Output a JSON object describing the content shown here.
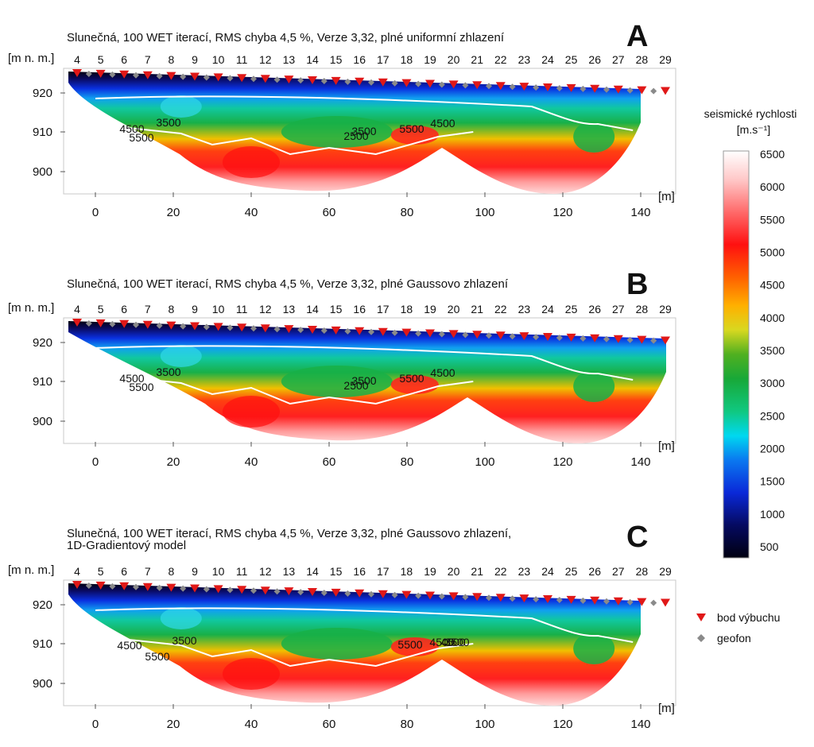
{
  "panels": [
    {
      "letter": "A",
      "title": "Slunečná, 100 WET iterací, RMS chyba 4,5 %, Verze 3,32, plné uniformní zhlazení",
      "title2": "",
      "contours": [
        "4500",
        "3500",
        "5500",
        "2500",
        "3500",
        "5500",
        "4500"
      ]
    },
    {
      "letter": "B",
      "title": "Slunečná, 100 WET iterací, RMS chyba 4,5 %, Verze 3,32, plné Gaussovo zhlazení",
      "title2": "",
      "contours": [
        "4500",
        "3500",
        "5500",
        "2500",
        "3500",
        "5500",
        "4500"
      ]
    },
    {
      "letter": "C",
      "title": "Slunečná, 100 WET iterací, RMS chyba 4,5 %, Verze 3,32, plné Gaussovo zhlazení,",
      "title2": "1D-Gradientový model",
      "contours": [
        "4500",
        "3500",
        "5500",
        "5500",
        "4500",
        "3500",
        "4500"
      ]
    }
  ],
  "y_unit": "[m n. m.]",
  "x_unit": "[m]",
  "y_ticks": [
    "920",
    "910",
    "900"
  ],
  "x_ticks": [
    "0",
    "20",
    "40",
    "60",
    "80",
    "100",
    "120",
    "140"
  ],
  "shot_labels": [
    "4",
    "5",
    "6",
    "7",
    "8",
    "9",
    "10",
    "11",
    "12",
    "13",
    "14",
    "15",
    "16",
    "17",
    "18",
    "19",
    "20",
    "21",
    "22",
    "23",
    "24",
    "25",
    "26",
    "27",
    "28",
    "29"
  ],
  "colorbar": {
    "title": "seismické rychlosti",
    "unit": "[m.s⁻¹]",
    "ticks": [
      "6500",
      "6000",
      "5500",
      "5000",
      "4500",
      "4000",
      "3500",
      "3000",
      "2500",
      "2000",
      "1500",
      "1000",
      "500"
    ]
  },
  "legend": {
    "shot": "bod výbuchu",
    "geophone": "geofon",
    "shot_color": "#e01818",
    "geophone_color": "#8a8a8a"
  },
  "colors": {
    "velocity_scale": [
      "#0a0a14",
      "#0a0a60",
      "#0a20d0",
      "#0a70f0",
      "#00d0e0",
      "#10c070",
      "#20a030",
      "#c0d020",
      "#ffd000",
      "#ff8000",
      "#ff1010",
      "#ff9090",
      "#ffe0e0",
      "#ffffff"
    ]
  }
}
